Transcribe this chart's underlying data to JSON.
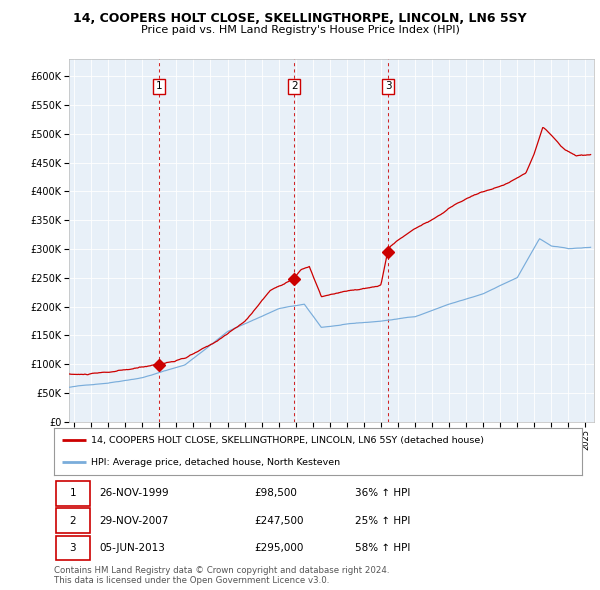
{
  "title_line1": "14, COOPERS HOLT CLOSE, SKELLINGTHORPE, LINCOLN, LN6 5SY",
  "title_line2": "Price paid vs. HM Land Registry's House Price Index (HPI)",
  "plot_bg_color": "#e8f0f8",
  "red_line_label": "14, COOPERS HOLT CLOSE, SKELLINGTHORPE, LINCOLN, LN6 5SY (detached house)",
  "blue_line_label": "HPI: Average price, detached house, North Kesteven",
  "transactions": [
    {
      "num": 1,
      "date": "26-NOV-1999",
      "date_x": 2000.0,
      "price": 98500,
      "price_str": "£98,500",
      "hpi_pct": "36% ↑ HPI"
    },
    {
      "num": 2,
      "date": "29-NOV-2007",
      "date_x": 2007.92,
      "price": 247500,
      "price_str": "£247,500",
      "hpi_pct": "25% ↑ HPI"
    },
    {
      "num": 3,
      "date": "05-JUN-2013",
      "date_x": 2013.43,
      "price": 295000,
      "price_str": "£295,000",
      "hpi_pct": "58% ↑ HPI"
    }
  ],
  "ylim": [
    0,
    630000
  ],
  "xlim": [
    1994.7,
    2025.5
  ],
  "yticks": [
    0,
    50000,
    100000,
    150000,
    200000,
    250000,
    300000,
    350000,
    400000,
    450000,
    500000,
    550000,
    600000
  ],
  "ytick_labels": [
    "£0",
    "£50K",
    "£100K",
    "£150K",
    "£200K",
    "£250K",
    "£300K",
    "£350K",
    "£400K",
    "£450K",
    "£500K",
    "£550K",
    "£600K"
  ],
  "footer_line1": "Contains HM Land Registry data © Crown copyright and database right 2024.",
  "footer_line2": "This data is licensed under the Open Government Licence v3.0.",
  "red_color": "#cc0000",
  "blue_color": "#7aaddb",
  "dashed_color": "#cc0000",
  "grid_color": "#ffffff",
  "spine_color": "#bbbbbb"
}
